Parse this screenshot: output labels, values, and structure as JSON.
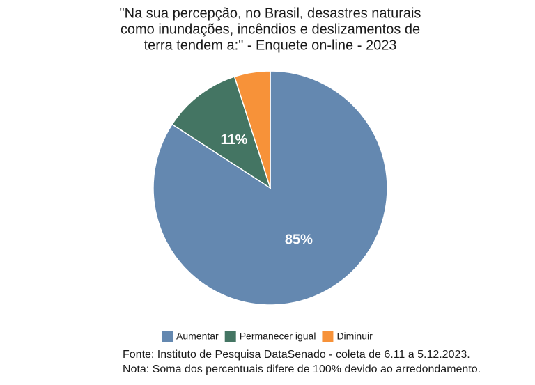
{
  "chart_data": {
    "type": "pie",
    "title": [
      "\"Na sua percepção, no Brasil, desastres naturais",
      "como inundações, incêndios e deslizamentos de",
      "terra tendem a:\" - Enquete on-line - 2023"
    ],
    "categories": [
      "Aumentar",
      "Permanecer igual",
      "Diminuir"
    ],
    "values": [
      85,
      11,
      5
    ],
    "value_labels": [
      "85%",
      "11%",
      null
    ],
    "colors": [
      "#6488b0",
      "#447563",
      "#f79239"
    ],
    "notes": [
      "Fonte: Instituto de Pesquisa DataSenado - coleta de 6.11 a 5.12.2023.",
      "Nota: Soma dos percentuais difere de 100% devido ao arredondamento."
    ]
  }
}
